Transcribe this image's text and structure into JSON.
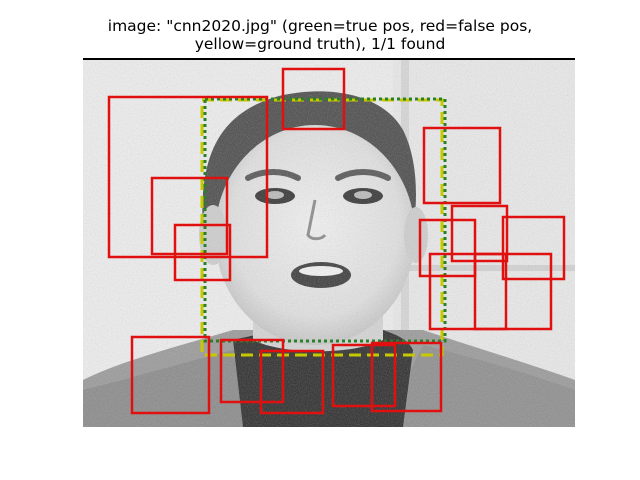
{
  "title": {
    "line1": "image: \"cnn2020.jpg\" (green=true pos, red=false pos,",
    "line2": "yellow=ground truth), 1/1 found"
  },
  "colors": {
    "true_pos": "#2a7f2a",
    "false_pos": "#e01010",
    "ground_truth": "#c8c800"
  },
  "detections": {
    "true_positive_count": 1,
    "false_positive_count": 16,
    "ground_truth_count": 1
  }
}
